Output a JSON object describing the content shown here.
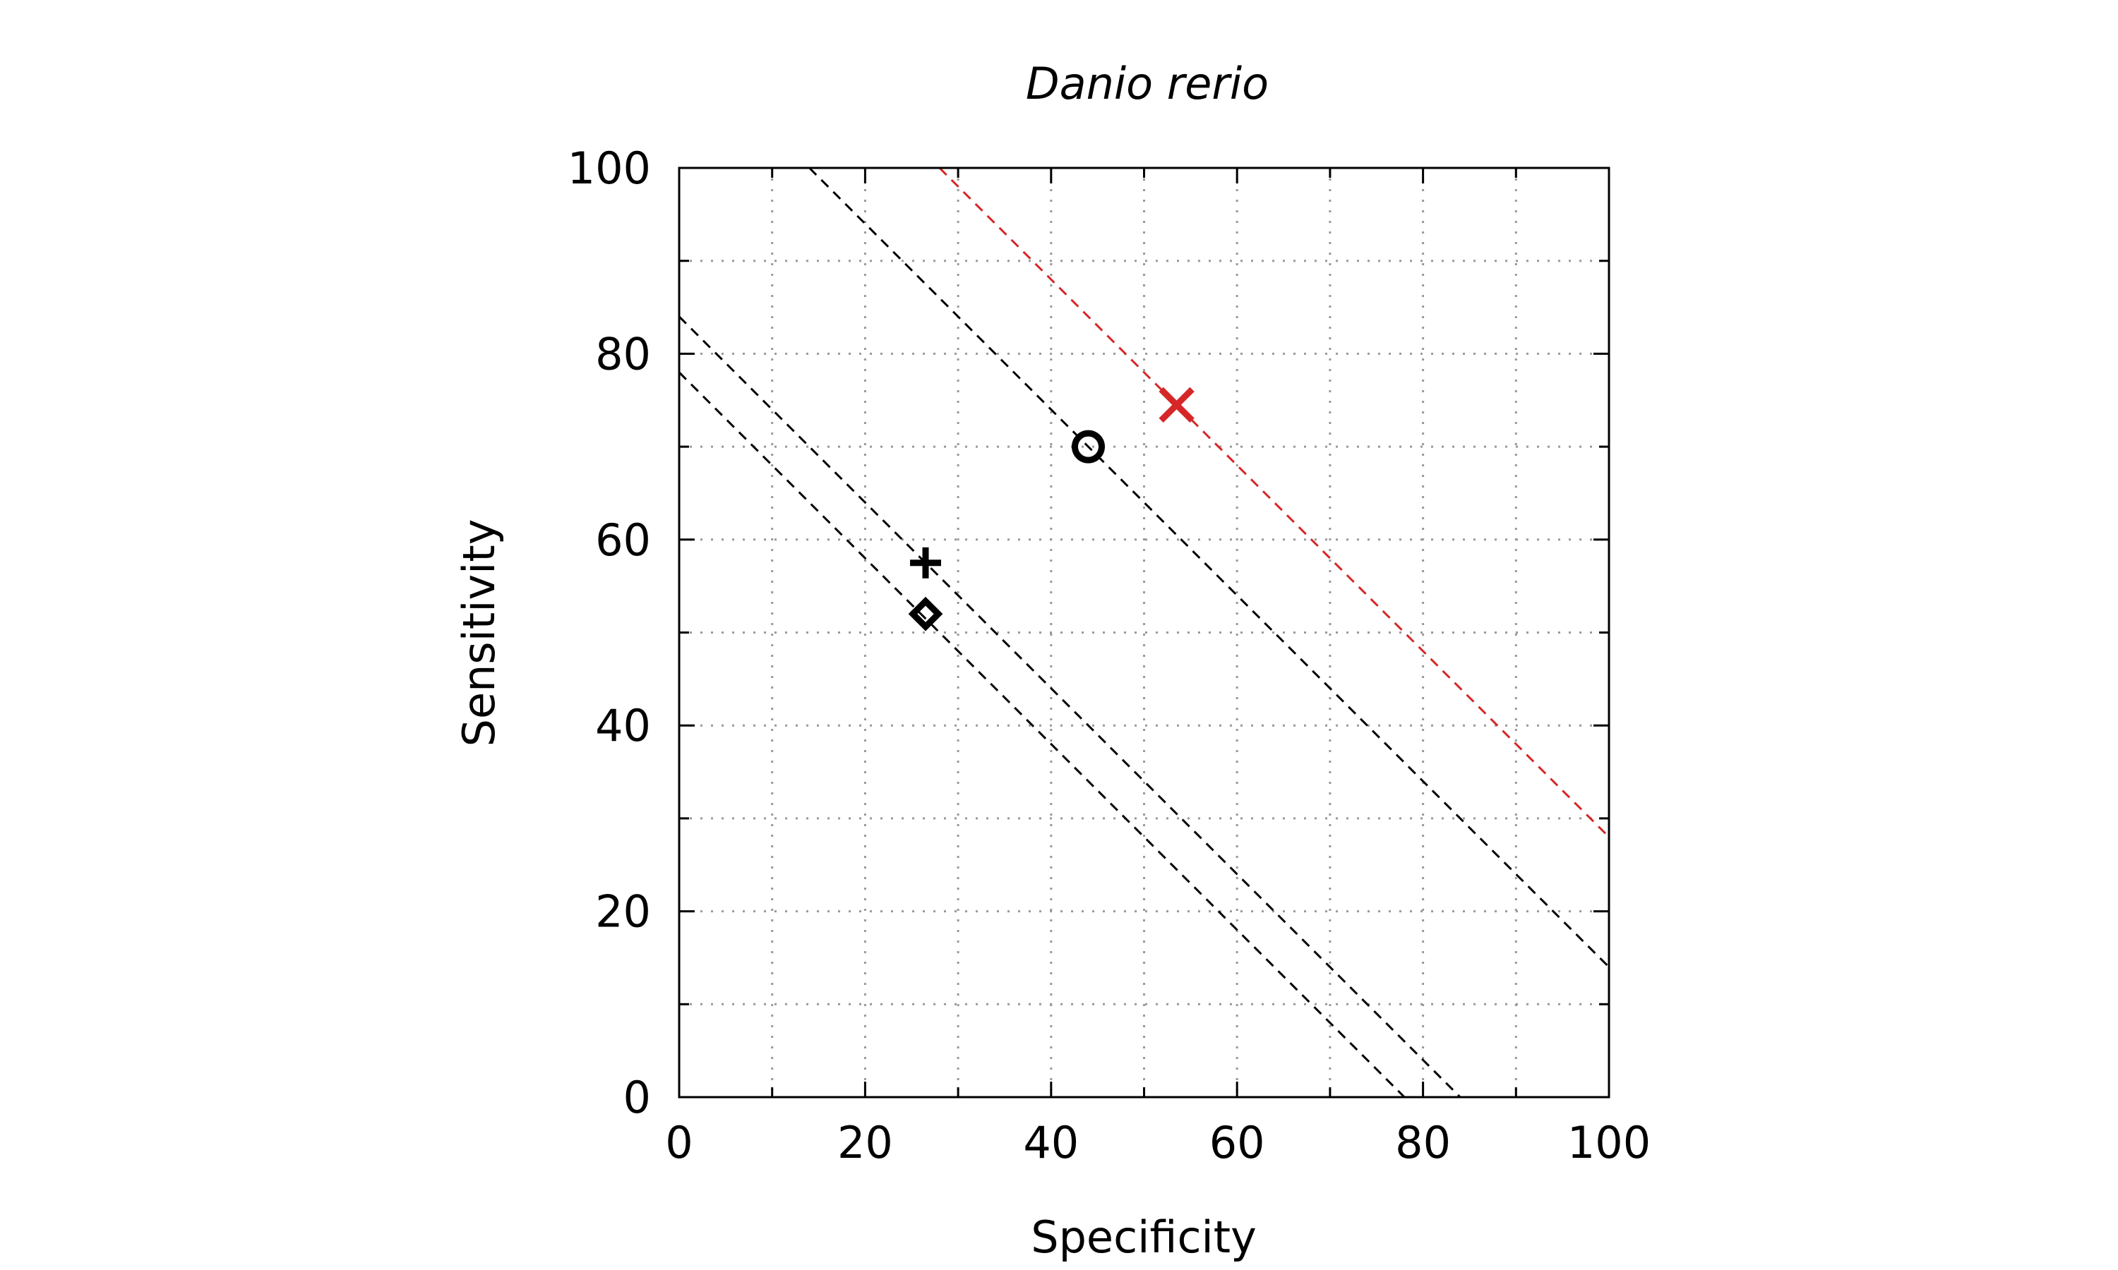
{
  "chart_data": {
    "type": "scatter",
    "title": "Danio rerio",
    "xlabel": "Specificity",
    "ylabel": "Sensitivity",
    "xlim": [
      0,
      100
    ],
    "ylim": [
      0,
      100
    ],
    "xticks": [
      0,
      20,
      40,
      60,
      80,
      100
    ],
    "yticks": [
      0,
      20,
      40,
      60,
      80,
      100
    ],
    "xticks_minor": [
      10,
      30,
      50,
      70,
      90
    ],
    "yticks_minor": [
      10,
      30,
      50,
      70,
      90
    ],
    "grid": true,
    "legend": "none",
    "points": [
      {
        "marker": "cross-x",
        "x": 53.5,
        "y": 74.5,
        "color": "#d62728"
      },
      {
        "marker": "circle",
        "x": 44,
        "y": 70,
        "color": "#000000"
      },
      {
        "marker": "plus",
        "x": 26.5,
        "y": 57.5,
        "color": "#000000"
      },
      {
        "marker": "diamond",
        "x": 26.5,
        "y": 52,
        "color": "#000000"
      }
    ],
    "reference_lines": [
      {
        "x1": 28,
        "y1": 100,
        "x2": 100,
        "y2": 28,
        "color": "#d62728",
        "style": "dashed"
      },
      {
        "x1": 14,
        "y1": 100,
        "x2": 100,
        "y2": 14,
        "color": "#000000",
        "style": "dashed"
      },
      {
        "x1": 0,
        "y1": 84,
        "x2": 84,
        "y2": 0,
        "color": "#000000",
        "style": "dashed"
      },
      {
        "x1": 0,
        "y1": 78,
        "x2": 78,
        "y2": 0,
        "color": "#000000",
        "style": "dashed"
      }
    ]
  }
}
